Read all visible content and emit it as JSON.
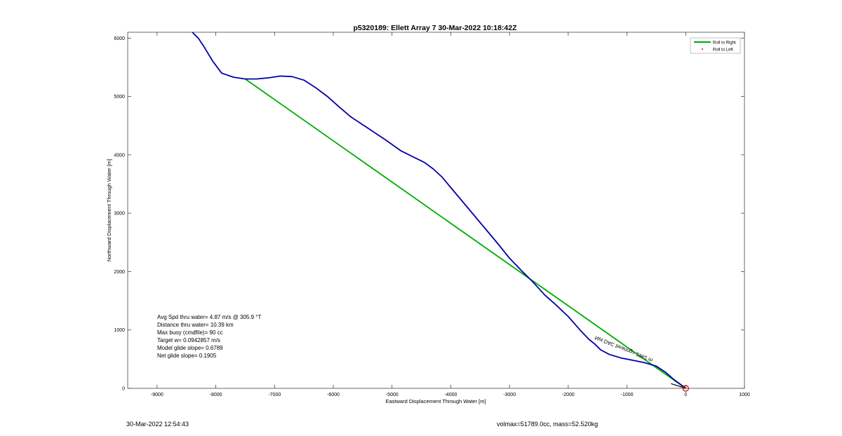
{
  "footer": {
    "timestamp": "30-Mar-2022 12:54:43",
    "vol_mass": "volmax=51789.0cc, mass=52.520kg"
  },
  "chart_data": {
    "type": "line",
    "title": "p5320189: Ellett Array 7 30-Mar-2022 10:18:42Z",
    "xlabel": "Eastward Displacement Through Water [m]",
    "ylabel": "Northward Displacement Through Water [m]",
    "xlim": [
      -9500,
      1000
    ],
    "ylim": [
      0,
      6100
    ],
    "xticks": [
      -9000,
      -8000,
      -7000,
      -6000,
      -5000,
      -4000,
      -3000,
      -2000,
      -1000,
      0,
      1000
    ],
    "yticks": [
      0,
      1000,
      2000,
      3000,
      4000,
      5000,
      6000
    ],
    "grid": false,
    "legend": {
      "placement": "top-right",
      "entries": [
        {
          "label": "Roll to Right",
          "color": "#00aa00",
          "marker": "line"
        },
        {
          "label": "Roll to Left",
          "color": "#cc0000",
          "marker": "dot"
        }
      ]
    },
    "annotations": [
      "Avg Spd thru water=  4.87 m/s @ 305.9 °T",
      "Distance thru water= 10.39 km",
      "Max buoy (cmdfile)= 90 cc",
      "Target w= 0.0942857 m/s",
      "Model glide slope= 0.6789",
      "Net glide slope= 0.1905"
    ],
    "rotated_annotation": "Net DAC bearing= 2962 m",
    "series": [
      {
        "color": "#0000aa",
        "x": [
          -20,
          -80,
          -200,
          -350,
          -500,
          -700,
          -900,
          -1100,
          -1300,
          -1450,
          -1550,
          -1650,
          -1800,
          -2000,
          -2200,
          -2400,
          -2600,
          -2800,
          -3000,
          -3200,
          -3400,
          -3600,
          -3800,
          -4000,
          -4150,
          -4300,
          -4450,
          -4650,
          -4850,
          -5100,
          -5400,
          -5700,
          -5900,
          -6100,
          -6300,
          -6500,
          -6700,
          -6900,
          -7100,
          -7300,
          -7500,
          -7700,
          -7900,
          -8050,
          -8200,
          -8300,
          -8400
        ],
        "y": [
          20,
          60,
          150,
          280,
          380,
          440,
          480,
          520,
          580,
          660,
          760,
          840,
          1000,
          1230,
          1420,
          1600,
          1820,
          2020,
          2230,
          2480,
          2720,
          2960,
          3200,
          3440,
          3620,
          3760,
          3870,
          3970,
          4070,
          4250,
          4450,
          4650,
          4820,
          5000,
          5150,
          5280,
          5340,
          5350,
          5320,
          5300,
          5300,
          5330,
          5400,
          5600,
          5850,
          6000,
          6100
        ]
      },
      {
        "name": "Roll to Right",
        "color": "#00aa00",
        "x": [
          0,
          -7500
        ],
        "y": [
          0,
          5300
        ]
      },
      {
        "color": "#000000",
        "x": [
          0,
          -250
        ],
        "y": [
          0,
          80
        ]
      }
    ],
    "end_marker": {
      "x": 0,
      "y": 0,
      "color": "#cc0000",
      "shape": "circle"
    }
  }
}
